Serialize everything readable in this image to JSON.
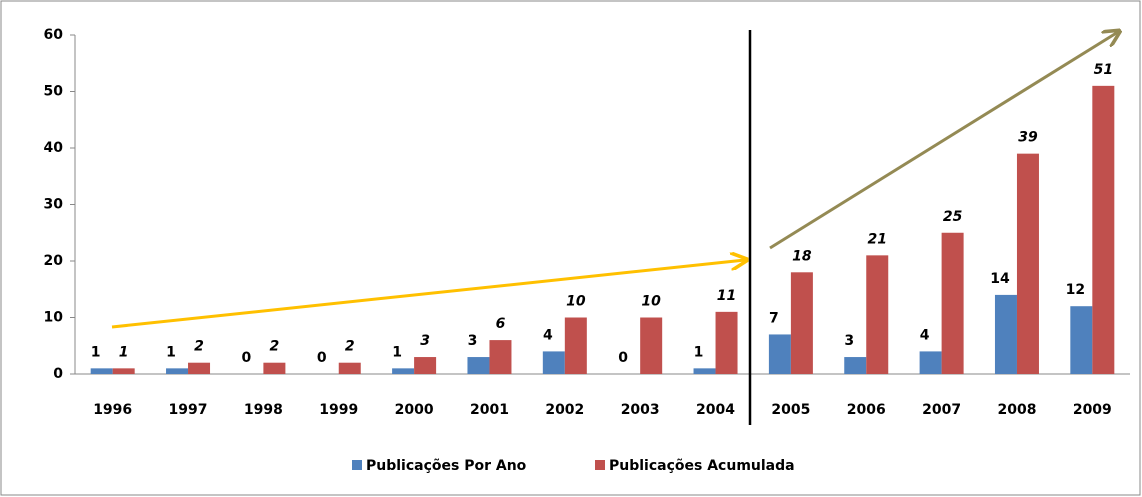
{
  "chart_data": {
    "type": "bar",
    "categories": [
      "1996",
      "1997",
      "1998",
      "1999",
      "2000",
      "2001",
      "2002",
      "2003",
      "2004",
      "2005",
      "2006",
      "2007",
      "2008",
      "2009"
    ],
    "series": [
      {
        "name": "Publicações Por Ano",
        "color": "#4f81bd",
        "values": [
          1,
          1,
          0,
          0,
          1,
          3,
          4,
          0,
          1,
          7,
          3,
          4,
          14,
          12
        ]
      },
      {
        "name": "Publicações Acumulada",
        "color": "#c0504d",
        "values": [
          1,
          2,
          2,
          2,
          3,
          6,
          10,
          10,
          11,
          18,
          21,
          25,
          39,
          51
        ]
      }
    ],
    "ylim": [
      0,
      60
    ],
    "yticks": [
      0,
      10,
      20,
      30,
      40,
      50,
      60
    ],
    "grid": false,
    "legend": "bottom"
  }
}
